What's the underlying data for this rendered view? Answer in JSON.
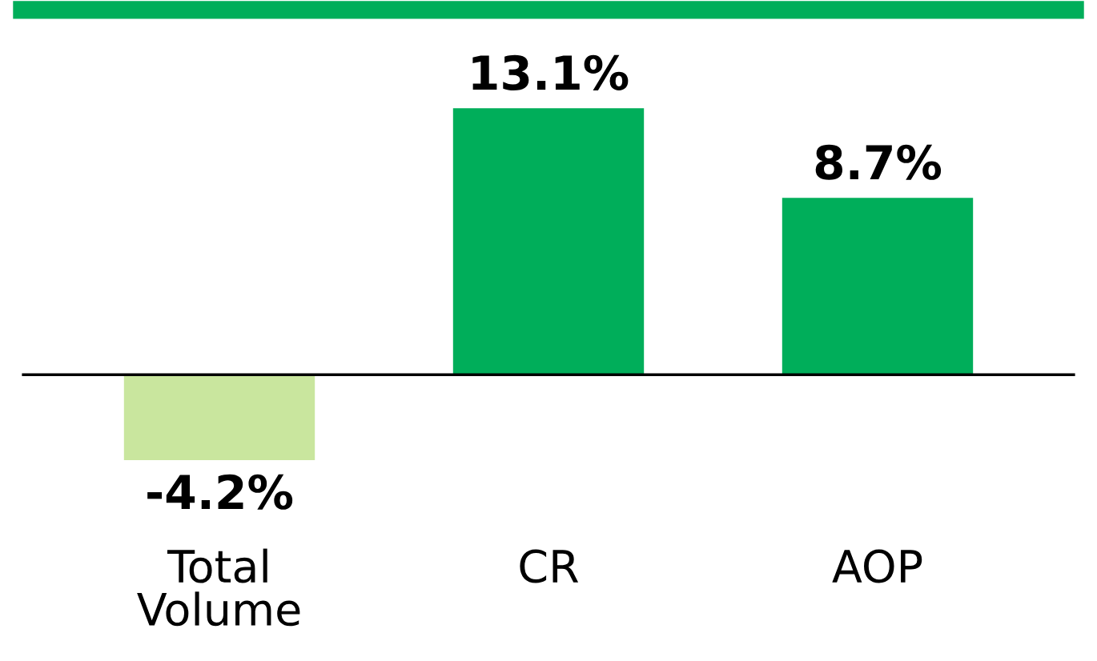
{
  "chart_data": {
    "type": "bar",
    "categories": [
      "Total\nVolume",
      "CR",
      "AOP"
    ],
    "values": [
      -4.2,
      13.1,
      8.7
    ],
    "value_labels": [
      "-4.2%",
      "13.1%",
      "8.7%"
    ],
    "colors": [
      "#c9e69e",
      "#00ae5a",
      "#00ae5a"
    ]
  }
}
